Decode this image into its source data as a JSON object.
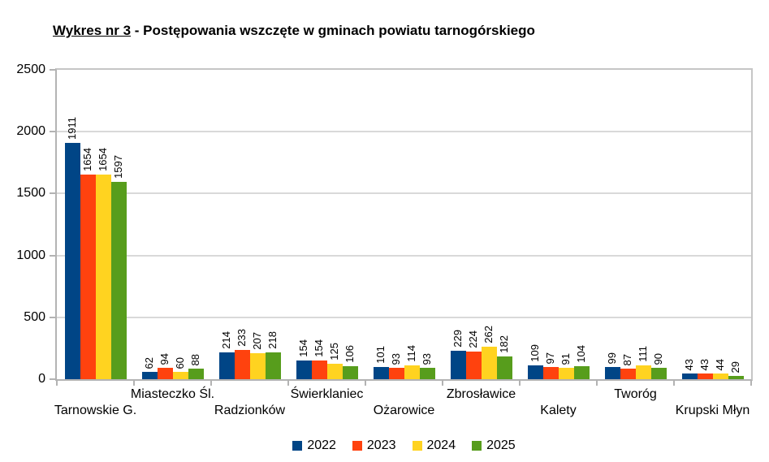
{
  "title": {
    "underlined": "Wykres nr 3",
    "rest": " - Postępowania wszczęte w gminach powiatu tarnogórskiego"
  },
  "chart_data": {
    "type": "bar",
    "title": "Wykres nr 3 - Postępowania wszczęte w gminach powiatu tarnogórskiego",
    "xlabel": "",
    "ylabel": "",
    "ylim": [
      0,
      2500
    ],
    "yticks": [
      0,
      500,
      1000,
      1500,
      2000,
      2500
    ],
    "grid": true,
    "legend_position": "bottom",
    "value_labels": "rotated-90-above-bars",
    "categories": [
      "Tarnowskie G.",
      "Miasteczko Śl.",
      "Radzionków",
      "Świerklaniec",
      "Ożarowice",
      "Zbrosławice",
      "Kalety",
      "Tworóg",
      "Krupski Młyn"
    ],
    "series": [
      {
        "name": "2022",
        "color": "#004586",
        "values": [
          1911,
          62,
          214,
          154,
          101,
          229,
          109,
          99,
          43
        ]
      },
      {
        "name": "2023",
        "color": "#FF420E",
        "values": [
          1654,
          94,
          233,
          154,
          93,
          224,
          97,
          87,
          43
        ]
      },
      {
        "name": "2024",
        "color": "#FFD320",
        "values": [
          1654,
          60,
          207,
          125,
          114,
          262,
          91,
          111,
          44
        ]
      },
      {
        "name": "2025",
        "color": "#579D1C",
        "values": [
          1597,
          88,
          218,
          106,
          93,
          182,
          104,
          90,
          29
        ]
      }
    ]
  },
  "colors": {
    "background": "#ffffff",
    "gridline": "#d9d9d9",
    "axis": "#b3b3b3",
    "text": "#000000"
  }
}
